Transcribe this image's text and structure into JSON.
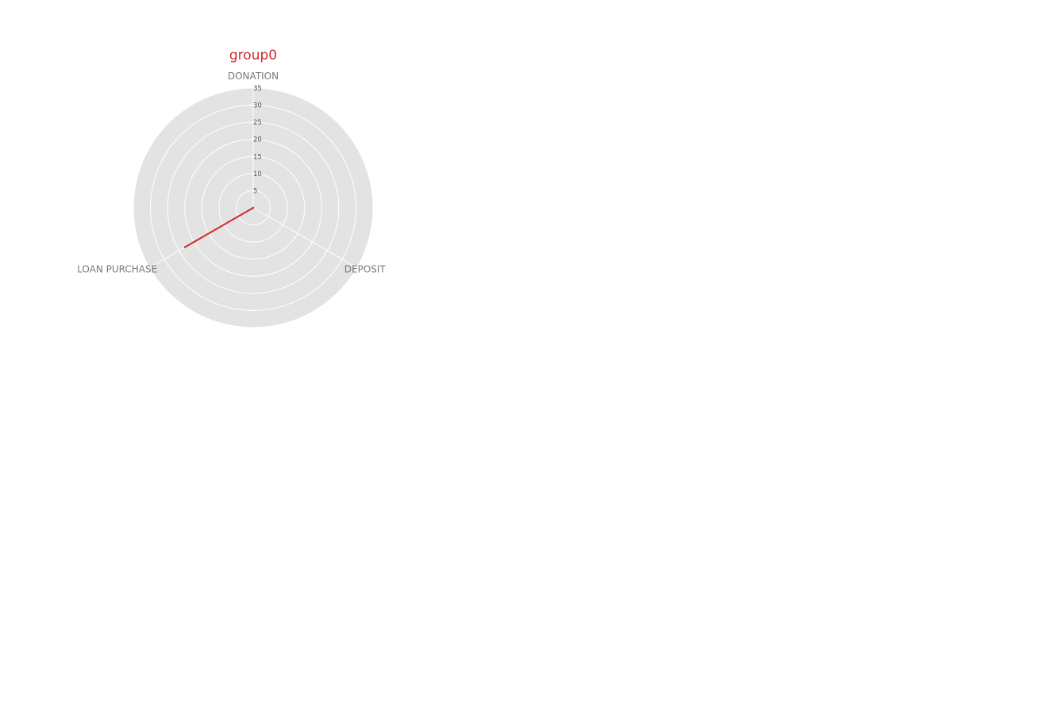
{
  "chart_data": {
    "type": "radar",
    "title": "group0",
    "categories": [
      "DONATION",
      "DEPOSIT",
      "LOAN PURCHASE"
    ],
    "series": [
      {
        "values": [
          0,
          0,
          23
        ]
      }
    ],
    "rlim": [
      0,
      35
    ],
    "rticks": [
      5,
      10,
      15,
      20,
      25,
      30,
      35
    ],
    "rtick_labels": [
      "5",
      "10",
      "15",
      "20",
      "25",
      "30",
      "35"
    ],
    "grid": true,
    "colors": {
      "series": "#d62728",
      "title": "#d62728",
      "background": "#e3e3e3",
      "grid": "#ffffff",
      "category_label": "#7a7a7a",
      "tick_label": "#555555"
    }
  }
}
